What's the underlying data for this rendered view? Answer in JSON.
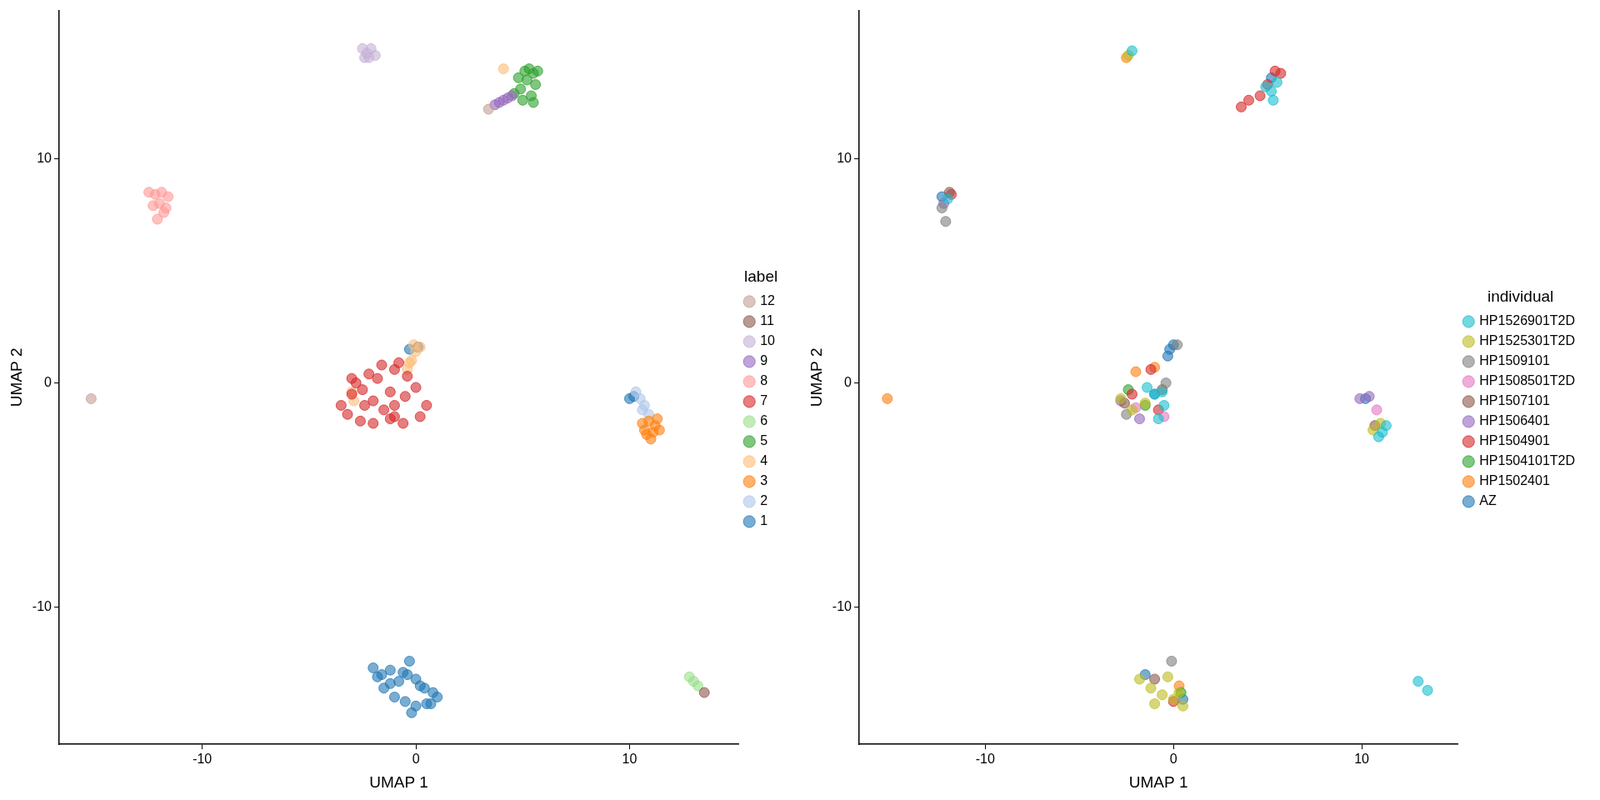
{
  "chart_data": [
    {
      "type": "scatter",
      "x_label": "UMAP 1",
      "y_label": "UMAP 2",
      "legend_title": "label",
      "legend": "right",
      "grid": false,
      "xlim": [
        -16.7,
        15.1
      ],
      "ylim": [
        -16.1,
        16.6
      ],
      "xticks": [
        -10,
        0,
        10
      ],
      "yticks": [
        -10,
        0,
        10
      ],
      "series": [
        {
          "name": "1",
          "color": "#1f77b4",
          "x": [
            -2,
            -1.6,
            -1.2,
            -0.8,
            -0.4,
            0,
            0.4,
            0.8,
            1,
            -1.5,
            -1,
            -0.5,
            0,
            0.5,
            -1.8,
            -1.2,
            -0.6,
            0.2,
            0.7,
            -0.2,
            -0.3,
            10.0,
            10.2,
            0.1,
            -0.3
          ],
          "y": [
            -12.7,
            -13.0,
            -13.4,
            -13.3,
            -13.0,
            -13.2,
            -13.6,
            -13.8,
            -14.0,
            -13.6,
            -14.0,
            -14.2,
            -14.4,
            -14.3,
            -13.1,
            -12.8,
            -12.9,
            -13.5,
            -14.3,
            -14.7,
            -12.4,
            -0.7,
            -0.6,
            1.6,
            1.5
          ]
        },
        {
          "name": "2",
          "color": "#aec7e8",
          "x": [
            10.3,
            10.5,
            10.7,
            10.9,
            10.6
          ],
          "y": [
            -0.4,
            -0.7,
            -1.0,
            -1.4,
            -1.2
          ]
        },
        {
          "name": "3",
          "color": "#ff7f0e",
          "x": [
            10.6,
            10.9,
            11.2,
            11.4,
            10.8,
            11.1,
            11.3,
            10.7,
            11.0
          ],
          "y": [
            -1.8,
            -1.7,
            -1.9,
            -2.1,
            -2.3,
            -2.2,
            -1.6,
            -2.1,
            -2.5
          ]
        },
        {
          "name": "4",
          "color": "#ffbb78",
          "x": [
            -0.4,
            -0.2,
            0,
            -0.1,
            0.2,
            -0.3,
            4.1,
            -3.0,
            -2.9
          ],
          "y": [
            0.6,
            1.0,
            1.4,
            1.7,
            1.6,
            0.9,
            14.0,
            -0.4,
            -0.8
          ]
        },
        {
          "name": "5",
          "color": "#2ca02c",
          "x": [
            4.6,
            4.9,
            5.2,
            5.5,
            5.7,
            5.0,
            5.4,
            5.6,
            5.3,
            4.8,
            5.1,
            5.5
          ],
          "y": [
            12.9,
            13.1,
            13.5,
            13.8,
            13.9,
            12.6,
            12.8,
            13.3,
            14.0,
            13.6,
            13.9,
            12.5
          ]
        },
        {
          "name": "6",
          "color": "#98df8a",
          "x": [
            12.8,
            13.0,
            13.2
          ],
          "y": [
            -13.1,
            -13.3,
            -13.5
          ]
        },
        {
          "name": "7",
          "color": "#d62728",
          "x": [
            -3.5,
            -3,
            -2.5,
            -2,
            -1.5,
            -1,
            -0.5,
            0,
            0.5,
            -3.2,
            -2.6,
            -2,
            -1.2,
            -0.6,
            0.2,
            -2.8,
            -2.2,
            -1.6,
            -1,
            -0.4,
            -2.4,
            -1.8,
            -1.2,
            -0.8,
            -3.0,
            -1.0
          ],
          "y": [
            -1.0,
            -0.5,
            -0.3,
            -0.8,
            -1.2,
            -1.5,
            -0.6,
            -0.2,
            -1.0,
            -1.4,
            -1.7,
            -1.8,
            -1.6,
            -1.8,
            -1.5,
            0.0,
            0.4,
            0.8,
            0.6,
            0.3,
            -1.0,
            0.2,
            -0.4,
            0.9,
            0.2,
            -1.0
          ]
        },
        {
          "name": "8",
          "color": "#ff9896",
          "x": [
            -12.5,
            -12.2,
            -11.9,
            -11.6,
            -12.3,
            -12.0,
            -11.7,
            -12.1,
            -11.8
          ],
          "y": [
            8.5,
            8.4,
            8.5,
            8.3,
            7.9,
            8.0,
            7.8,
            7.3,
            7.6
          ]
        },
        {
          "name": "9",
          "color": "#9467bd",
          "x": [
            3.7,
            3.9,
            4.1,
            4.3,
            4.5
          ],
          "y": [
            12.4,
            12.5,
            12.6,
            12.7,
            12.8
          ]
        },
        {
          "name": "10",
          "color": "#c5b0d5",
          "x": [
            -2.5,
            -2.3,
            -2.1,
            -2.4,
            -2.2,
            -1.9
          ],
          "y": [
            14.9,
            14.7,
            14.9,
            14.5,
            14.5,
            14.6
          ]
        },
        {
          "name": "11",
          "color": "#8c564b",
          "x": [
            13.5
          ],
          "y": [
            -13.8
          ]
        },
        {
          "name": "12",
          "color": "#c49c94",
          "x": [
            -15.2,
            3.4
          ],
          "y": [
            -0.7,
            12.2
          ]
        }
      ]
    },
    {
      "type": "scatter",
      "x_label": "UMAP 1",
      "y_label": "UMAP 2",
      "legend_title": "individual",
      "legend": "right",
      "grid": false,
      "xlim": [
        -16.7,
        15.1
      ],
      "ylim": [
        -16.1,
        16.6
      ],
      "xticks": [
        -10,
        0,
        10
      ],
      "yticks": [
        -10,
        0,
        10
      ],
      "series": [
        {
          "name": "AZ",
          "color": "#1f77b4",
          "x": [
            -0.2,
            0,
            -1.5,
            -12.3,
            10.2,
            -0.3,
            -1.0,
            0.5,
            5.2
          ],
          "y": [
            1.5,
            1.7,
            -13.0,
            8.3,
            -0.7,
            1.2,
            -0.5,
            -14.1,
            13.6
          ]
        },
        {
          "name": "HP1502401",
          "color": "#ff7f0e",
          "x": [
            -15.2,
            -2.0,
            -1.0,
            0.3,
            -2.5
          ],
          "y": [
            -0.7,
            0.5,
            0.7,
            -13.5,
            14.5
          ]
        },
        {
          "name": "HP1504101T2D",
          "color": "#2ca02c",
          "x": [
            -1.5,
            -2.4,
            0.4
          ],
          "y": [
            -1.0,
            -0.3,
            -13.8
          ]
        },
        {
          "name": "HP1504901",
          "color": "#d62728",
          "x": [
            5.0,
            5.4,
            4.6,
            3.6,
            4.0,
            -1.2,
            -2.2,
            -11.8,
            5.7,
            -0.8,
            0.0
          ],
          "y": [
            13.3,
            13.9,
            12.8,
            12.3,
            12.6,
            0.6,
            -0.5,
            8.4,
            13.8,
            -1.2,
            -14.2
          ]
        },
        {
          "name": "HP1506401",
          "color": "#9467bd",
          "x": [
            9.9,
            10.4,
            -2.8,
            -12.2,
            -1.8
          ],
          "y": [
            -0.7,
            -0.6,
            -0.8,
            8.0,
            -1.6
          ]
        },
        {
          "name": "HP1507101",
          "color": "#8c564b",
          "x": [
            -2.6,
            -11.9,
            10.7,
            -0.6,
            -1.0
          ],
          "y": [
            -0.9,
            8.5,
            -1.9,
            -0.3,
            -13.2
          ]
        },
        {
          "name": "HP1508501T2D",
          "color": "#e377c2",
          "x": [
            -0.5,
            10.8,
            -2.0
          ],
          "y": [
            -1.5,
            -1.2,
            -1.1
          ]
        },
        {
          "name": "HP1509101",
          "color": "#7f7f7f",
          "x": [
            -0.1,
            -12.1,
            -2.5,
            -0.4,
            0.2,
            -12.3
          ],
          "y": [
            -12.4,
            7.2,
            -1.4,
            0.0,
            1.7,
            7.8
          ]
        },
        {
          "name": "HP1525301T2D",
          "color": "#bcbd22",
          "x": [
            -1.8,
            -1.2,
            -0.6,
            0,
            0.5,
            -1.0,
            -0.3,
            0.3,
            -2.8,
            -2.2,
            -1.5,
            11.0,
            10.6,
            -2.4
          ],
          "y": [
            -13.2,
            -13.6,
            -13.9,
            -14.1,
            -14.4,
            -14.3,
            -13.1,
            -13.8,
            -0.7,
            -1.2,
            -0.9,
            -1.8,
            -2.1,
            14.6
          ]
        },
        {
          "name": "HP1526901T2D",
          "color": "#17becf",
          "x": [
            5.2,
            5.5,
            5.3,
            4.9,
            -1.0,
            -0.5,
            -0.8,
            -1.4,
            11.1,
            11.3,
            10.9,
            13.0,
            13.5,
            -12.0,
            -2.2,
            -0.6
          ],
          "y": [
            13.0,
            13.4,
            12.6,
            13.2,
            -0.5,
            -1.0,
            -1.6,
            -0.2,
            -2.2,
            -1.9,
            -2.4,
            -13.3,
            -13.7,
            8.2,
            14.8,
            -0.4
          ]
        }
      ]
    }
  ]
}
